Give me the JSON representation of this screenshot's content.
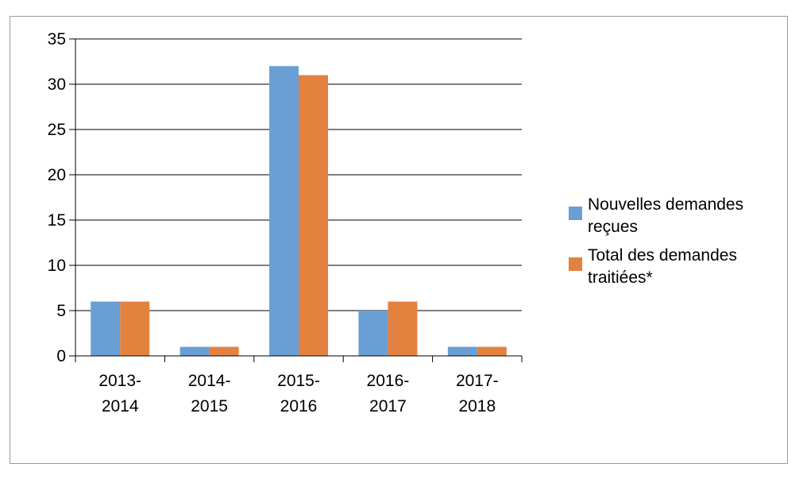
{
  "chart_data": {
    "type": "bar",
    "categories": [
      "2013-\n2014",
      "2014-\n2015",
      "2015-\n2016",
      "2016-\n2017",
      "2017-\n2018"
    ],
    "series": [
      {
        "name": "Nouvelles demandes reçues",
        "values": [
          6,
          1,
          32,
          5,
          1
        ],
        "color": "#6a9fd6"
      },
      {
        "name": "Total des demandes traitiées*",
        "values": [
          6,
          1,
          31,
          6,
          1
        ],
        "color": "#e3823f"
      }
    ],
    "ylim": [
      0,
      35
    ],
    "yticks": [
      0,
      5,
      10,
      15,
      20,
      25,
      30,
      35
    ],
    "grid": true,
    "legend_position": "right",
    "title": "",
    "xlabel": "",
    "ylabel": ""
  }
}
